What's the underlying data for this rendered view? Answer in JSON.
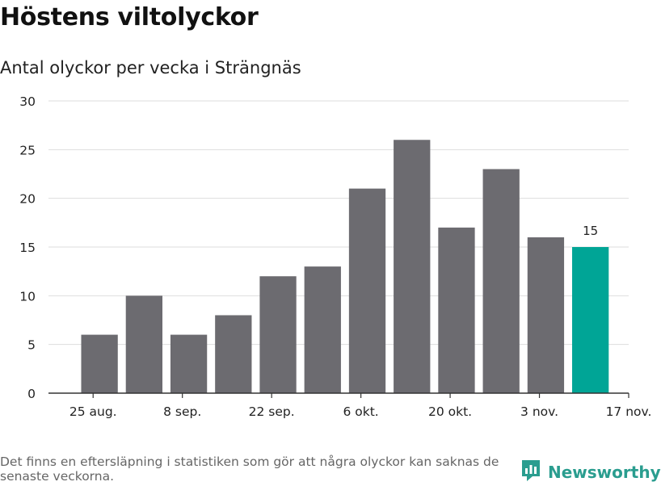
{
  "header": {
    "title": "Höstens viltolyckor",
    "subtitle": "Antal olyckor per vecka i Strängnäs"
  },
  "footer": {
    "note": "Det finns en eftersläpning i statistiken som gör att några olyckor kan saknas de senaste veckorna.",
    "brand_name": "Newsworthy",
    "brand_icon": "newsworthy-logo-icon"
  },
  "colors": {
    "bar": "#6c6b70",
    "highlight": "#00a596",
    "grid": "#dddddd",
    "axis": "#333333",
    "brand": "#2a9d8f"
  },
  "chart_data": {
    "type": "bar",
    "title": "Höstens viltolyckor",
    "subtitle": "Antal olyckor per vecka i Strängnäs",
    "xlabel": "",
    "ylabel": "",
    "x": [
      "2019-08-26",
      "2019-09-02",
      "2019-09-09",
      "2019-09-16",
      "2019-09-23",
      "2019-09-30",
      "2019-10-07",
      "2019-10-14",
      "2019-10-21",
      "2019-10-28",
      "2019-11-04",
      "2019-11-11"
    ],
    "values": [
      6,
      10,
      6,
      8,
      12,
      13,
      21,
      26,
      17,
      23,
      16,
      15
    ],
    "highlight_index": 11,
    "data_labels": [
      {
        "index": 11,
        "text": "15"
      }
    ],
    "xlim": [
      "2019-08-18",
      "2019-11-17"
    ],
    "x_ticks": [
      "25 aug.",
      "8 sep.",
      "22 sep.",
      "6 okt.",
      "20 okt.",
      "3 nov.",
      "17 nov."
    ],
    "ylim": [
      0,
      30
    ],
    "y_ticks": [
      0,
      5,
      10,
      15,
      20,
      25,
      30
    ],
    "grid": true,
    "legend": "none"
  }
}
